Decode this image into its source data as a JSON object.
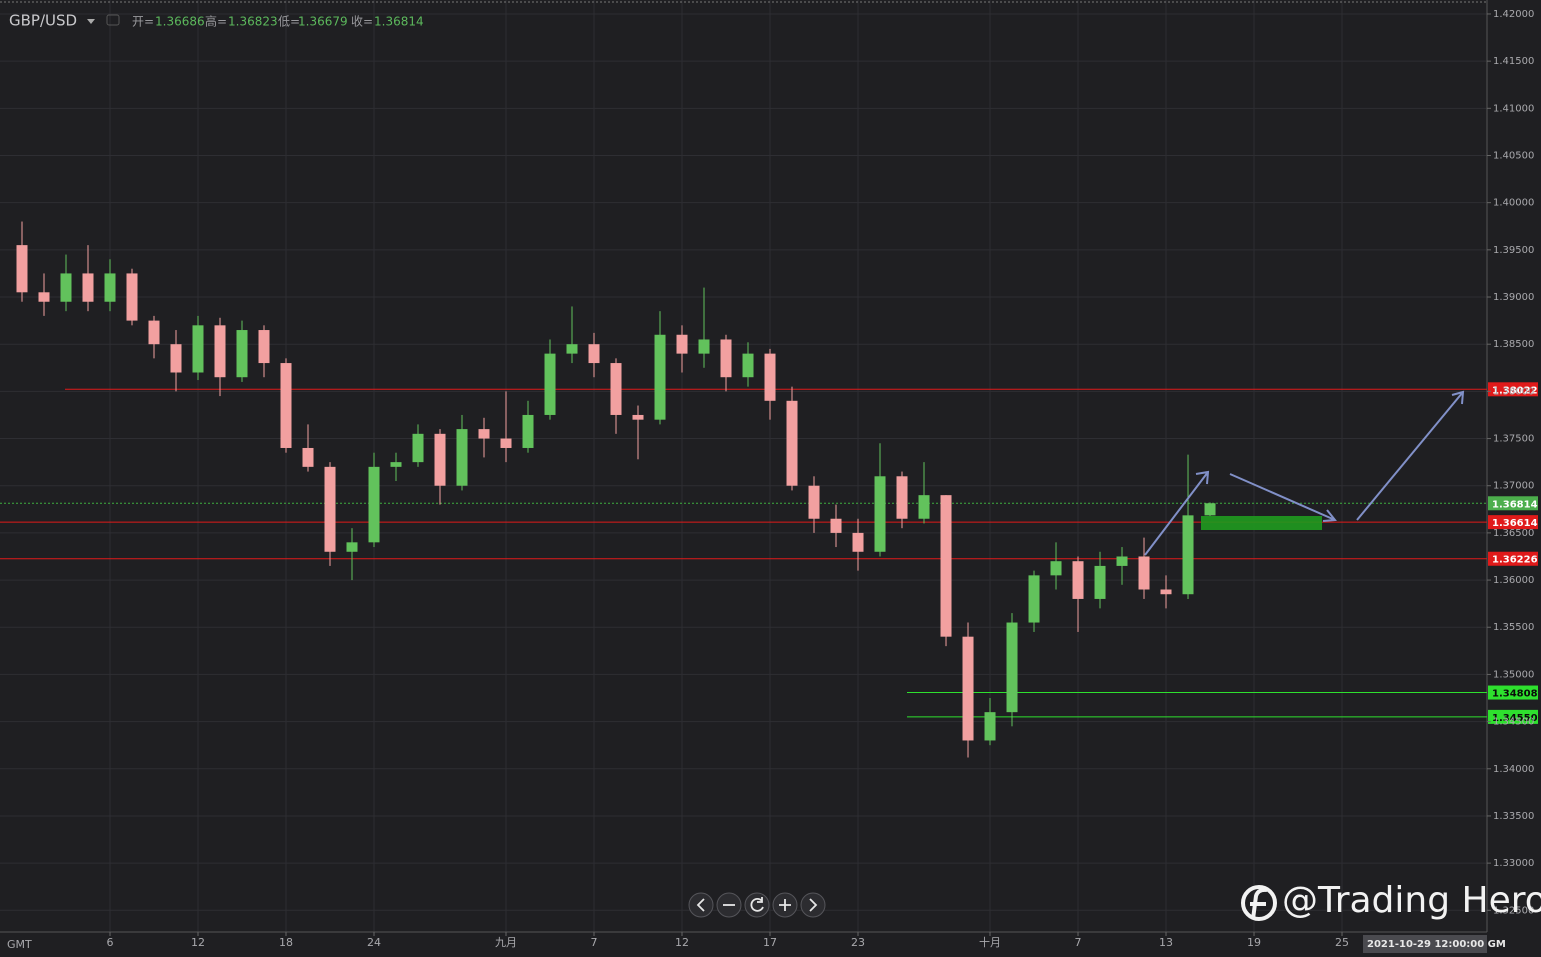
{
  "chart_data": {
    "type": "candlestick",
    "symbol": "GBP/USD",
    "quote": {
      "open_label": "开=",
      "open": 1.36686,
      "high_label": "高=",
      "high": 1.36823,
      "low_label": "低=",
      "low": 1.36679,
      "close_label": "收=",
      "close": 1.36814
    },
    "x": [
      -4,
      -3,
      -2,
      -1,
      0,
      1,
      2,
      3,
      4,
      5,
      6,
      7,
      8,
      9,
      10,
      11,
      12,
      13,
      14,
      15,
      16,
      17,
      18,
      19,
      20,
      21,
      22,
      23,
      24,
      25,
      26,
      27,
      28,
      29,
      30,
      31,
      32,
      33,
      34,
      35,
      36,
      37,
      38,
      39,
      40,
      41,
      42,
      43,
      44,
      45,
      46,
      47,
      48,
      49,
      50
    ],
    "open": [
      1.3955,
      1.3905,
      1.3895,
      1.3925,
      1.3895,
      1.3925,
      1.3875,
      1.385,
      1.382,
      1.387,
      1.3815,
      1.3865,
      1.383,
      1.374,
      1.372,
      1.363,
      1.364,
      1.372,
      1.3725,
      1.3755,
      1.37,
      1.376,
      1.375,
      1.374,
      1.3775,
      1.384,
      1.385,
      1.383,
      1.3775,
      1.377,
      1.386,
      1.384,
      1.3855,
      1.3815,
      1.384,
      1.379,
      1.37,
      1.3665,
      1.365,
      1.363,
      1.371,
      1.3665,
      1.369,
      1.354,
      1.343,
      1.346,
      1.3555,
      1.3605,
      1.362,
      1.358,
      1.3615,
      1.3625,
      1.359,
      1.3585,
      1.36686
    ],
    "high": [
      1.398,
      1.3925,
      1.3945,
      1.3955,
      1.394,
      1.393,
      1.388,
      1.3865,
      1.388,
      1.3878,
      1.3875,
      1.387,
      1.3835,
      1.3765,
      1.3725,
      1.3655,
      1.3735,
      1.3735,
      1.3765,
      1.376,
      1.3775,
      1.3772,
      1.38,
      1.379,
      1.3855,
      1.389,
      1.3862,
      1.3835,
      1.3785,
      1.3885,
      1.387,
      1.391,
      1.386,
      1.3852,
      1.3845,
      1.3805,
      1.371,
      1.368,
      1.3665,
      1.3745,
      1.3715,
      1.3725,
      1.369,
      1.3555,
      1.3475,
      1.3565,
      1.361,
      1.364,
      1.3625,
      1.363,
      1.3635,
      1.3645,
      1.3605,
      1.3733,
      1.36823
    ],
    "low": [
      1.3895,
      1.388,
      1.3885,
      1.3885,
      1.3885,
      1.387,
      1.3835,
      1.38,
      1.3812,
      1.3795,
      1.381,
      1.3815,
      1.3735,
      1.3715,
      1.3615,
      1.36,
      1.3635,
      1.3705,
      1.372,
      1.368,
      1.3695,
      1.373,
      1.3725,
      1.3735,
      1.377,
      1.383,
      1.3815,
      1.3755,
      1.3728,
      1.3765,
      1.382,
      1.3825,
      1.38,
      1.3805,
      1.377,
      1.3695,
      1.365,
      1.3635,
      1.361,
      1.3625,
      1.3655,
      1.366,
      1.353,
      1.3412,
      1.3425,
      1.3445,
      1.3545,
      1.359,
      1.3545,
      1.357,
      1.3595,
      1.358,
      1.357,
      1.358,
      1.36679
    ],
    "close": [
      1.3905,
      1.3895,
      1.3925,
      1.3895,
      1.3925,
      1.3875,
      1.385,
      1.382,
      1.387,
      1.3815,
      1.3865,
      1.383,
      1.374,
      1.372,
      1.363,
      1.364,
      1.372,
      1.3725,
      1.3755,
      1.37,
      1.376,
      1.375,
      1.374,
      1.3775,
      1.384,
      1.385,
      1.383,
      1.3775,
      1.377,
      1.386,
      1.384,
      1.3855,
      1.3815,
      1.384,
      1.379,
      1.37,
      1.3665,
      1.365,
      1.363,
      1.371,
      1.3665,
      1.369,
      1.354,
      1.343,
      1.346,
      1.3555,
      1.3605,
      1.362,
      1.358,
      1.3615,
      1.3625,
      1.359,
      1.3585,
      1.36686,
      1.36814
    ],
    "up_color": "#62c25c",
    "down_color": "#f2a0a0",
    "xlim": [
      -5,
      62.59
    ],
    "xticks": [
      {
        "value": 0,
        "label": "6"
      },
      {
        "value": 4,
        "label": "12"
      },
      {
        "value": 8,
        "label": "18"
      },
      {
        "value": 12,
        "label": "24"
      },
      {
        "value": 18,
        "label": "九月"
      },
      {
        "value": 22,
        "label": "7"
      },
      {
        "value": 26,
        "label": "12"
      },
      {
        "value": 30,
        "label": "17"
      },
      {
        "value": 34,
        "label": "23"
      },
      {
        "value": 40,
        "label": "十月"
      },
      {
        "value": 44,
        "label": "7"
      },
      {
        "value": 48,
        "label": "13"
      },
      {
        "value": 52,
        "label": "19"
      },
      {
        "value": 56,
        "label": "25"
      }
    ],
    "ylim": [
      1.3227,
      1.42148
    ],
    "yticks": [
      {
        "value": 1.42,
        "label": "1.42000"
      },
      {
        "value": 1.415,
        "label": "1.41500"
      },
      {
        "value": 1.41,
        "label": "1.41000"
      },
      {
        "value": 1.405,
        "label": "1.40500"
      },
      {
        "value": 1.4,
        "label": "1.40000"
      },
      {
        "value": 1.395,
        "label": "1.39500"
      },
      {
        "value": 1.39,
        "label": "1.39000"
      },
      {
        "value": 1.385,
        "label": "1.38500"
      },
      {
        "value": 1.38,
        "label": "1.38000"
      },
      {
        "value": 1.375,
        "label": "1.37500"
      },
      {
        "value": 1.37,
        "label": "1.37000"
      },
      {
        "value": 1.365,
        "label": "1.36500"
      },
      {
        "value": 1.36,
        "label": "1.36000"
      },
      {
        "value": 1.355,
        "label": "1.35500"
      },
      {
        "value": 1.35,
        "label": "1.35000"
      },
      {
        "value": 1.345,
        "label": "1.34500"
      },
      {
        "value": 1.34,
        "label": "1.34000"
      },
      {
        "value": 1.335,
        "label": "1.33500"
      },
      {
        "value": 1.33,
        "label": "1.33000"
      },
      {
        "value": 1.325,
        "label": "1.32500"
      }
    ],
    "grid": true,
    "levels": [
      {
        "value": 1.38022,
        "label": "1.38022",
        "color": "#e01a1a"
      },
      {
        "value": 1.36614,
        "label": "1.36614",
        "color": "#e01a1a"
      },
      {
        "value": 1.36226,
        "label": "1.36226",
        "color": "#e01a1a"
      },
      {
        "value": 1.34808,
        "label": "1.34808",
        "color": "#2ee02e"
      },
      {
        "value": 1.3455,
        "label": "1.34550",
        "color": "#2ee02e"
      }
    ],
    "timezone": "GMT",
    "crosshair_time": "2021-10-29 12:00:00 GM",
    "watermark": "@Trading Hero"
  }
}
